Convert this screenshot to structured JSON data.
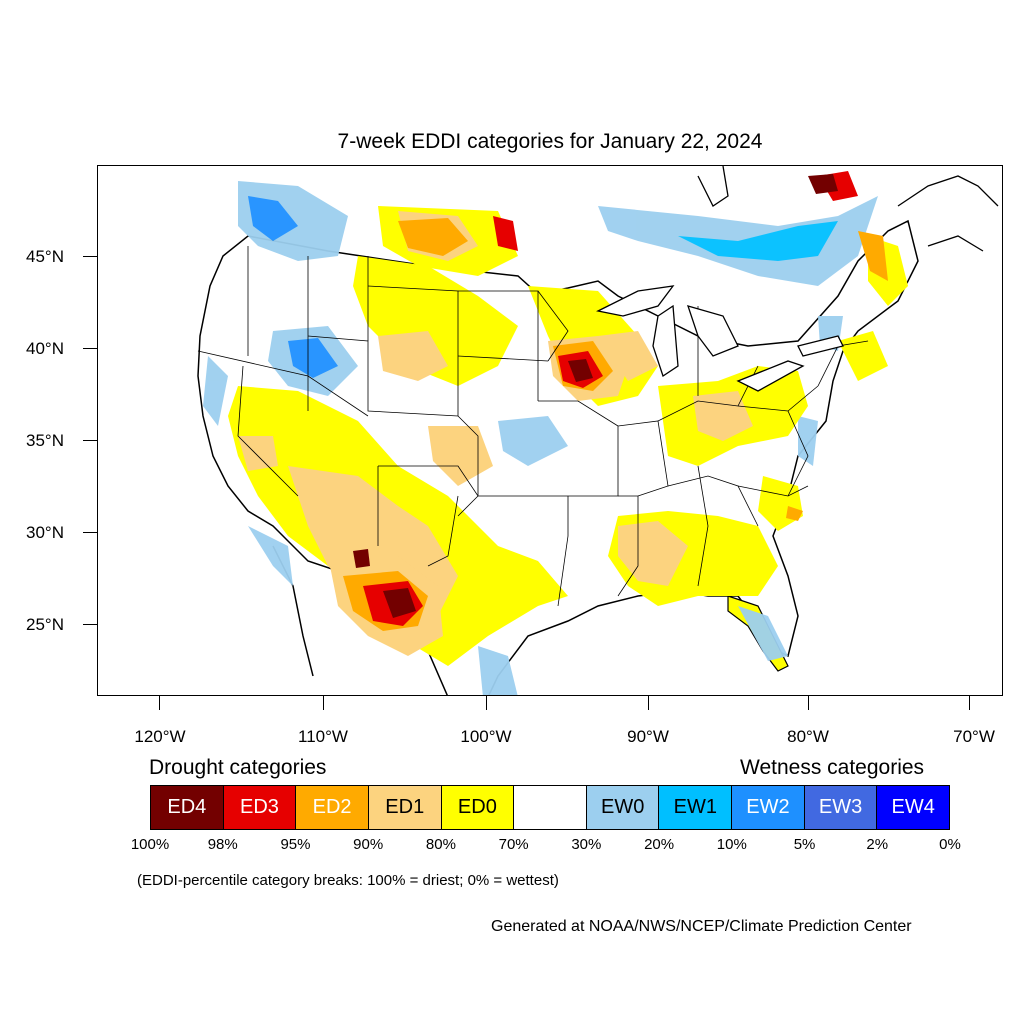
{
  "title": "7-week EDDI categories for January 22, 2024",
  "lat_labels": [
    "45°N",
    "40°N",
    "35°N",
    "30°N",
    "25°N"
  ],
  "lon_labels": [
    "120°W",
    "110°W",
    "100°W",
    "90°W",
    "80°W",
    "70°W"
  ],
  "legend": {
    "drought_heading": "Drought categories",
    "wetness_heading": "Wetness categories",
    "categories": [
      {
        "label": "ED4",
        "color": "#730000",
        "text_color": "#ffffff"
      },
      {
        "label": "ED3",
        "color": "#e60000",
        "text_color": "#ffffff"
      },
      {
        "label": "ED2",
        "color": "#ffaa00",
        "text_color": "#ffffff"
      },
      {
        "label": "ED1",
        "color": "#fcd37f",
        "text_color": "#000000"
      },
      {
        "label": "ED0",
        "color": "#ffff00",
        "text_color": "#000000"
      },
      {
        "label": "",
        "color": "#ffffff",
        "text_color": "#000000"
      },
      {
        "label": "EW0",
        "color": "#9ccfef",
        "text_color": "#000000"
      },
      {
        "label": "EW1",
        "color": "#00bfff",
        "text_color": "#000000"
      },
      {
        "label": "EW2",
        "color": "#1e90ff",
        "text_color": "#ffffff"
      },
      {
        "label": "EW3",
        "color": "#4169e1",
        "text_color": "#ffffff"
      },
      {
        "label": "EW4",
        "color": "#0000ff",
        "text_color": "#ffffff"
      }
    ],
    "percent_breaks": [
      "100%",
      "98%",
      "95%",
      "90%",
      "80%",
      "70%",
      "30%",
      "20%",
      "10%",
      "5%",
      "2%",
      "0%"
    ]
  },
  "breaks_note": "(EDDI-percentile category breaks: 100% = driest; 0% = wettest)",
  "credit": "Generated at NOAA/NWS/NCEP/Climate Prediction Center"
}
